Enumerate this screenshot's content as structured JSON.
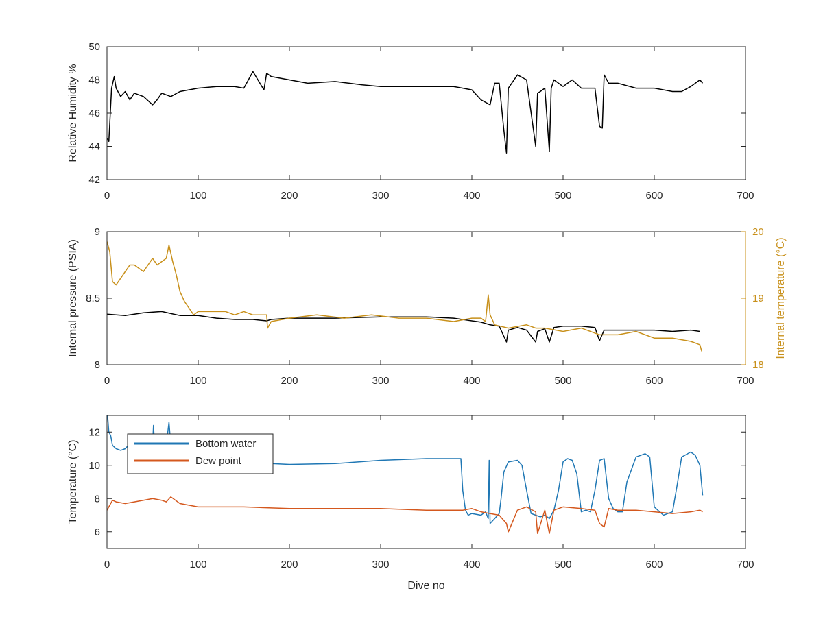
{
  "colors": {
    "humidity": "#000000",
    "pressure": "#000000",
    "internal_temperature": "#c8901a",
    "bottom_water": "#1f77b4",
    "dew_point": "#d4581e",
    "axis": "#262626"
  },
  "chart_data": [
    {
      "type": "line",
      "xlabel": "",
      "ylabel": "Relative Humidity %",
      "xlim": [
        0,
        700
      ],
      "ylim": [
        42,
        50
      ],
      "xticks": [
        0,
        100,
        200,
        300,
        400,
        500,
        600,
        700
      ],
      "yticks": [
        42,
        44,
        46,
        48,
        50
      ],
      "grid": false,
      "series": [
        {
          "color_key": "humidity",
          "x": [
            0,
            2,
            5,
            8,
            10,
            15,
            20,
            25,
            30,
            40,
            50,
            55,
            60,
            70,
            80,
            100,
            120,
            140,
            150,
            160,
            172,
            175,
            180,
            200,
            220,
            250,
            280,
            300,
            330,
            360,
            380,
            390,
            400,
            410,
            420,
            425,
            430,
            435,
            438,
            440,
            450,
            460,
            470,
            472,
            475,
            480,
            485,
            487,
            490,
            500,
            510,
            520,
            535,
            540,
            543,
            545,
            550,
            560,
            580,
            600,
            620,
            630,
            640,
            650,
            653
          ],
          "y": [
            44.5,
            44.3,
            47.5,
            48.2,
            47.5,
            47.0,
            47.3,
            46.8,
            47.2,
            47.0,
            46.5,
            46.8,
            47.2,
            47.0,
            47.3,
            47.5,
            47.6,
            47.6,
            47.5,
            48.5,
            47.4,
            48.4,
            48.2,
            48.0,
            47.8,
            47.9,
            47.7,
            47.6,
            47.6,
            47.6,
            47.6,
            47.5,
            47.4,
            46.8,
            46.5,
            47.8,
            47.8,
            45.0,
            43.6,
            47.5,
            48.3,
            48.0,
            44.0,
            47.2,
            47.3,
            47.5,
            43.7,
            47.5,
            48.0,
            47.6,
            48.0,
            47.5,
            47.5,
            45.2,
            45.1,
            48.3,
            47.8,
            47.8,
            47.5,
            47.5,
            47.3,
            47.3,
            47.6,
            48.0,
            47.8
          ]
        }
      ]
    },
    {
      "type": "line",
      "xlabel": "",
      "ylabel": "Internal pressure (PSIA)",
      "y2label": "Internal temperature (°C)",
      "xlim": [
        0,
        700
      ],
      "ylim": [
        8,
        9
      ],
      "y2lim": [
        18,
        20
      ],
      "xticks": [
        0,
        100,
        200,
        300,
        400,
        500,
        600,
        700
      ],
      "yticks": [
        8,
        8.5,
        9
      ],
      "y2ticks": [
        18,
        19,
        20
      ],
      "grid": false,
      "series": [
        {
          "color_key": "pressure",
          "axis": "left",
          "x": [
            0,
            20,
            40,
            60,
            80,
            100,
            120,
            140,
            160,
            175,
            180,
            200,
            250,
            300,
            350,
            380,
            400,
            410,
            420,
            430,
            438,
            440,
            450,
            460,
            470,
            472,
            480,
            485,
            490,
            500,
            520,
            535,
            540,
            545,
            560,
            580,
            600,
            620,
            640,
            650
          ],
          "y": [
            8.38,
            8.37,
            8.39,
            8.4,
            8.37,
            8.37,
            8.35,
            8.34,
            8.34,
            8.33,
            8.34,
            8.35,
            8.35,
            8.36,
            8.36,
            8.35,
            8.33,
            8.32,
            8.3,
            8.29,
            8.17,
            8.26,
            8.28,
            8.26,
            8.17,
            8.25,
            8.27,
            8.17,
            8.28,
            8.29,
            8.29,
            8.28,
            8.18,
            8.26,
            8.26,
            8.26,
            8.26,
            8.25,
            8.26,
            8.25
          ]
        },
        {
          "color_key": "internal_temperature",
          "axis": "right",
          "x": [
            0,
            3,
            6,
            10,
            15,
            20,
            25,
            30,
            35,
            40,
            45,
            50,
            55,
            60,
            65,
            68,
            72,
            76,
            80,
            85,
            90,
            95,
            100,
            110,
            120,
            130,
            140,
            150,
            160,
            170,
            175,
            176,
            180,
            200,
            230,
            260,
            290,
            320,
            350,
            380,
            400,
            410,
            415,
            418,
            420,
            425,
            440,
            460,
            470,
            480,
            500,
            520,
            540,
            560,
            580,
            600,
            620,
            640,
            650,
            652
          ],
          "y": [
            19.85,
            19.7,
            19.25,
            19.2,
            19.3,
            19.4,
            19.5,
            19.5,
            19.45,
            19.4,
            19.5,
            19.6,
            19.5,
            19.55,
            19.6,
            19.8,
            19.55,
            19.35,
            19.1,
            18.95,
            18.85,
            18.75,
            18.8,
            18.8,
            18.8,
            18.8,
            18.75,
            18.8,
            18.75,
            18.75,
            18.75,
            18.55,
            18.65,
            18.7,
            18.75,
            18.7,
            18.75,
            18.7,
            18.7,
            18.65,
            18.7,
            18.7,
            18.65,
            19.05,
            18.75,
            18.6,
            18.55,
            18.6,
            18.55,
            18.55,
            18.5,
            18.55,
            18.45,
            18.45,
            18.5,
            18.4,
            18.4,
            18.35,
            18.3,
            18.2
          ]
        }
      ]
    },
    {
      "type": "line",
      "xlabel": "Dive no",
      "ylabel": "Temperature (°C)",
      "xlim": [
        0,
        700
      ],
      "ylim": [
        5,
        13
      ],
      "xticks": [
        0,
        100,
        200,
        300,
        400,
        500,
        600,
        700
      ],
      "yticks": [
        6,
        8,
        10,
        12
      ],
      "grid": false,
      "legend": "top-left",
      "series": [
        {
          "name": "Bottom water",
          "color_key": "bottom_water",
          "x": [
            0,
            2,
            4,
            6,
            10,
            15,
            20,
            25,
            30,
            35,
            40,
            45,
            50,
            51,
            52,
            55,
            60,
            65,
            68,
            70,
            75,
            80,
            100,
            120,
            150,
            180,
            200,
            250,
            300,
            350,
            388,
            390,
            393,
            396,
            400,
            410,
            415,
            418,
            419,
            420,
            425,
            430,
            432,
            435,
            440,
            450,
            455,
            460,
            465,
            470,
            475,
            480,
            485,
            490,
            495,
            500,
            505,
            510,
            515,
            520,
            525,
            530,
            535,
            540,
            545,
            550,
            555,
            560,
            565,
            570,
            580,
            590,
            595,
            600,
            610,
            620,
            625,
            630,
            640,
            645,
            650,
            653
          ],
          "y": [
            13.5,
            12.0,
            11.8,
            11.2,
            11.0,
            10.9,
            11.0,
            11.3,
            11.5,
            11.0,
            10.8,
            10.9,
            11.2,
            12.4,
            11.4,
            10.9,
            10.8,
            11.2,
            12.6,
            11.2,
            10.5,
            10.3,
            10.2,
            10.1,
            10.1,
            10.1,
            10.05,
            10.1,
            10.3,
            10.4,
            10.4,
            8.5,
            7.3,
            7.0,
            7.1,
            7.0,
            7.2,
            6.8,
            10.3,
            6.5,
            6.8,
            7.1,
            8.0,
            9.6,
            10.2,
            10.3,
            10.0,
            8.5,
            7.1,
            7.0,
            6.9,
            7.0,
            6.8,
            7.3,
            8.5,
            10.2,
            10.4,
            10.3,
            9.5,
            7.2,
            7.3,
            7.2,
            8.5,
            10.3,
            10.4,
            8.0,
            7.4,
            7.2,
            7.2,
            9.0,
            10.5,
            10.7,
            10.5,
            7.5,
            7.0,
            7.2,
            8.8,
            10.5,
            10.8,
            10.6,
            10.0,
            8.2
          ]
        },
        {
          "name": "Dew point",
          "color_key": "dew_point",
          "x": [
            0,
            3,
            6,
            10,
            20,
            30,
            40,
            50,
            60,
            65,
            70,
            80,
            100,
            150,
            200,
            250,
            300,
            350,
            390,
            400,
            410,
            420,
            430,
            438,
            440,
            450,
            460,
            470,
            472,
            480,
            485,
            490,
            500,
            520,
            535,
            540,
            545,
            550,
            560,
            580,
            600,
            620,
            640,
            650,
            653
          ],
          "y": [
            7.3,
            7.6,
            7.9,
            7.8,
            7.7,
            7.8,
            7.9,
            8.0,
            7.9,
            7.8,
            8.1,
            7.7,
            7.5,
            7.5,
            7.4,
            7.4,
            7.4,
            7.3,
            7.3,
            7.4,
            7.2,
            7.1,
            7.0,
            6.5,
            6.0,
            7.3,
            7.5,
            7.2,
            5.9,
            7.3,
            5.9,
            7.3,
            7.5,
            7.4,
            7.3,
            6.5,
            6.3,
            7.4,
            7.3,
            7.3,
            7.2,
            7.1,
            7.2,
            7.3,
            7.2
          ]
        }
      ]
    }
  ]
}
